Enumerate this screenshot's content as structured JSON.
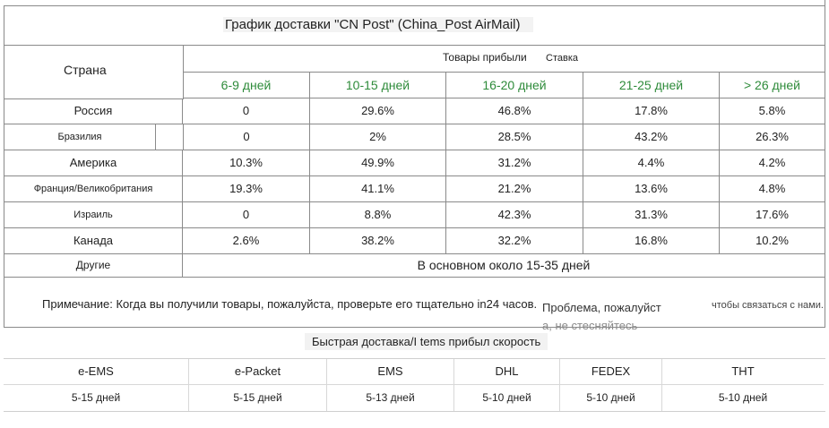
{
  "title": "График доставки \"CN Post\" (China_Post AirMail)",
  "header": {
    "country": "Страна",
    "arrived": "Товары прибыли",
    "rate": "Ставка",
    "ranges": [
      "6-9 дней",
      "10-15 дней",
      "16-20 дней",
      "21-25 дней",
      "> 26 дней"
    ]
  },
  "rows": [
    {
      "country": "Россия",
      "values": [
        "0",
        "29.6%",
        "46.8%",
        "17.8%",
        "5.8%"
      ]
    },
    {
      "country": "Бразилия",
      "values": [
        "0",
        "2%",
        "28.5%",
        "43.2%",
        "26.3%"
      ]
    },
    {
      "country": "Америка",
      "values": [
        "10.3%",
        "49.9%",
        "31.2%",
        "4.4%",
        "4.2%"
      ]
    },
    {
      "country": "Франция/Великобритания",
      "values": [
        "19.3%",
        "41.1%",
        "21.2%",
        "13.6%",
        "4.8%"
      ]
    },
    {
      "country": "Израиль",
      "values": [
        "0",
        "8.8%",
        "42.3%",
        "31.3%",
        "17.6%"
      ]
    },
    {
      "country": "Канада",
      "values": [
        "2.6%",
        "38.2%",
        "32.2%",
        "16.8%",
        "10.2%"
      ]
    }
  ],
  "other": {
    "country": "Другие",
    "value": "В основном около 15-35 дней"
  },
  "note": {
    "text": "Примечание: Когда вы получили товары, пожалуйста, проверьте его тщательно in24 часов.",
    "mid_line1": "Проблема, пожалуйст",
    "mid_line2": "а, не стесняйтесь",
    "end": "чтобы связаться с нами."
  },
  "express": {
    "title": "Быстрая доставка/I tems прибыл скорость",
    "services": [
      {
        "name": "e-EMS",
        "days": "5-15 дней"
      },
      {
        "name": "e-Packet",
        "days": "5-15 дней"
      },
      {
        "name": "EMS",
        "days": "5-13 дней"
      },
      {
        "name": "DHL",
        "days": "5-10 дней"
      },
      {
        "name": "FEDEX",
        "days": "5-10 дней"
      },
      {
        "name": "THT",
        "days": "5-10 дней"
      }
    ]
  },
  "colors": {
    "range_text": "#2e8b3a",
    "border": "#8a8a8a"
  }
}
